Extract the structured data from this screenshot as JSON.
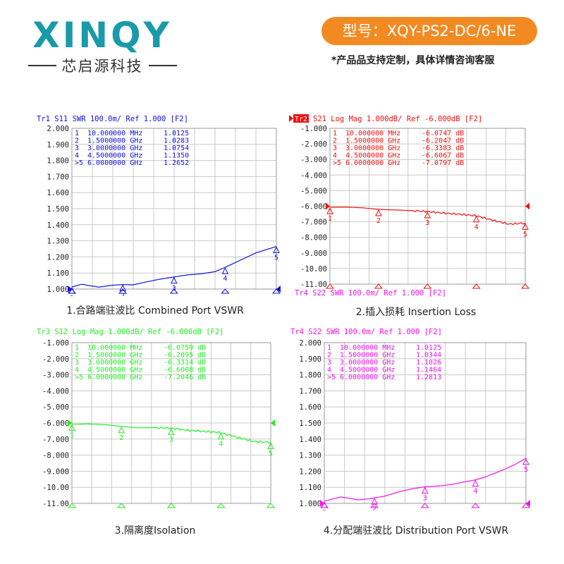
{
  "logo": {
    "brand": "XINQY",
    "tagline": "芯启源科技"
  },
  "model_badge": "型号：XQY-PS2-DC/6-NE",
  "custom_note": "*产品品支持定制，具体详情咨询客服",
  "captions": [
    "1.合路端驻波比 Combined Port VSWR",
    "2.插入损耗 Insertion Loss",
    "3.隔离度Isolation",
    "4.分配端驻波比 Distribution  Port VSWR"
  ],
  "colors": {
    "blue": "#1010e0",
    "red": "#ee1111",
    "green": "#22ee22",
    "magenta": "#ee11ee",
    "badge": "#f28a22",
    "logo": "#1a9aa8"
  },
  "chart_data": [
    {
      "type": "line",
      "header": "Tr1  S11  SWR 100.0m/ Ref 1.000 [F2]",
      "header_box": "",
      "yticks": [
        "2.000",
        "1.900",
        "1.800",
        "1.700",
        "1.600",
        "1.500",
        "1.400",
        "1.300",
        "1.200",
        "1.100",
        "1.000"
      ],
      "ylim": [
        1.0,
        2.0
      ],
      "xlim_ghz": [
        0.01,
        6.0
      ],
      "markers": [
        {
          "id": "1",
          "label": "1",
          "freq": "10.000000 MHz",
          "value": "1.0125"
        },
        {
          "id": "2",
          "label": "2",
          "freq": "1.5000000 GHz",
          "value": "1.0283"
        },
        {
          "id": "3",
          "label": "3",
          "freq": "3.0000000 GHz",
          "value": "1.0754"
        },
        {
          "id": "4",
          "label": "4",
          "freq": "4.5000000 GHz",
          "value": "1.1350"
        },
        {
          "id": "5",
          "label": ">5",
          "freq": "6.0000000 GHz",
          "value": "1.2652"
        }
      ],
      "trace": {
        "x": [
          0.01,
          0.3,
          0.5,
          0.8,
          1.0,
          1.2,
          1.5,
          1.8,
          2.2,
          2.6,
          3.0,
          3.4,
          3.8,
          4.2,
          4.5,
          4.8,
          5.1,
          5.4,
          5.7,
          6.0
        ],
        "y": [
          1.013,
          1.03,
          1.022,
          1.012,
          1.018,
          1.024,
          1.028,
          1.026,
          1.045,
          1.062,
          1.075,
          1.088,
          1.095,
          1.108,
          1.135,
          1.165,
          1.195,
          1.225,
          1.245,
          1.265
        ]
      }
    },
    {
      "type": "line",
      "header": "S21 Log Mag 1.000dB/ Ref -6.000dB [F2]",
      "header_box": "Tr2",
      "footer": "Tr4  S22  SWR 100.0m/ Ref 1.000 [F2]",
      "yticks": [
        "-1.000",
        "-2.000",
        "-3.000",
        "-4.000",
        "-5.000",
        "-6.000",
        "-7.000",
        "-8.000",
        "-9.000",
        "-10.00",
        "-11.00"
      ],
      "ylim": [
        -11.0,
        -1.0
      ],
      "xlim_ghz": [
        0.01,
        6.0
      ],
      "markers": [
        {
          "id": "1",
          "label": "1",
          "freq": "10.000000 MHz",
          "value": "-6.0747 dB"
        },
        {
          "id": "2",
          "label": "2",
          "freq": "1.5000000 GHz",
          "value": "-6.2047 dB"
        },
        {
          "id": "3",
          "label": "3",
          "freq": "3.0000000 GHz",
          "value": "-6.3383 dB"
        },
        {
          "id": "4",
          "label": "4",
          "freq": "4.5000000 GHz",
          "value": "-6.6067 dB"
        },
        {
          "id": "5",
          "label": ">5",
          "freq": "6.0000000 GHz",
          "value": "-7.0797 dB"
        }
      ],
      "trace": {
        "x": [
          0.01,
          0.5,
          1.0,
          1.5,
          2.0,
          2.5,
          3.0,
          3.5,
          4.0,
          4.5,
          5.0,
          5.5,
          6.0
        ],
        "y": [
          -6.07,
          -6.06,
          -6.1,
          -6.2,
          -6.24,
          -6.28,
          -6.34,
          -6.44,
          -6.52,
          -6.61,
          -6.9,
          -7.15,
          -7.08
        ]
      }
    },
    {
      "type": "line",
      "header": "Tr3  S12  Log Mag 1.000dB/ Ref -6.000dB [F2]",
      "header_box": "",
      "yticks": [
        "-1.000",
        "-2.000",
        "-3.000",
        "-4.000",
        "-5.000",
        "-6.000",
        "-7.000",
        "-8.000",
        "-9.000",
        "-10.00",
        "-11.00"
      ],
      "ylim": [
        -11.0,
        -1.0
      ],
      "xlim_ghz": [
        0.01,
        6.0
      ],
      "markers": [
        {
          "id": "1",
          "label": "1",
          "freq": "10.000000 MHz",
          "value": "-6.0759 dB"
        },
        {
          "id": "2",
          "label": "2",
          "freq": "1.5000000 GHz",
          "value": "-6.2095 dB"
        },
        {
          "id": "3",
          "label": "3",
          "freq": "3.0000000 GHz",
          "value": "-6.3314 dB"
        },
        {
          "id": "4",
          "label": "4",
          "freq": "4.5000000 GHz",
          "value": "-6.6008 dB"
        },
        {
          "id": "5",
          "label": ">5",
          "freq": "6.0000000 GHz",
          "value": "-7.2046 dB"
        }
      ],
      "trace": {
        "x": [
          0.01,
          0.5,
          1.0,
          1.5,
          2.0,
          2.5,
          3.0,
          3.5,
          4.0,
          4.5,
          5.0,
          5.5,
          6.0
        ],
        "y": [
          -6.08,
          -6.06,
          -6.1,
          -6.21,
          -6.3,
          -6.28,
          -6.33,
          -6.45,
          -6.52,
          -6.6,
          -6.9,
          -7.15,
          -7.2
        ]
      }
    },
    {
      "type": "line",
      "header": "Tr4  S22  SWR 100.0m/ Ref 1.000 [F2]",
      "header_box": "",
      "yticks": [
        "2.000",
        "1.900",
        "1.800",
        "1.700",
        "1.600",
        "1.500",
        "1.400",
        "1.300",
        "1.200",
        "1.100",
        "1.000"
      ],
      "ylim": [
        1.0,
        2.0
      ],
      "xlim_ghz": [
        0.01,
        6.0
      ],
      "markers": [
        {
          "id": "1",
          "label": "1",
          "freq": "10.000000 MHz",
          "value": "1.0125"
        },
        {
          "id": "2",
          "label": "2",
          "freq": "1.5000000 GHz",
          "value": "1.0344"
        },
        {
          "id": "3",
          "label": "3",
          "freq": "3.0000000 GHz",
          "value": "1.1026"
        },
        {
          "id": "4",
          "label": "4",
          "freq": "4.5000000 GHz",
          "value": "1.1464"
        },
        {
          "id": "5",
          "label": ">5",
          "freq": "6.0000000 GHz",
          "value": "1.2813"
        }
      ],
      "trace": {
        "x": [
          0.01,
          0.3,
          0.5,
          0.8,
          1.0,
          1.2,
          1.5,
          1.8,
          2.2,
          2.6,
          3.0,
          3.4,
          3.8,
          4.2,
          4.5,
          4.8,
          5.1,
          5.4,
          5.7,
          6.0
        ],
        "y": [
          1.013,
          1.03,
          1.04,
          1.03,
          1.022,
          1.025,
          1.034,
          1.045,
          1.07,
          1.09,
          1.103,
          1.108,
          1.118,
          1.135,
          1.146,
          1.165,
          1.19,
          1.215,
          1.245,
          1.281
        ]
      }
    }
  ]
}
